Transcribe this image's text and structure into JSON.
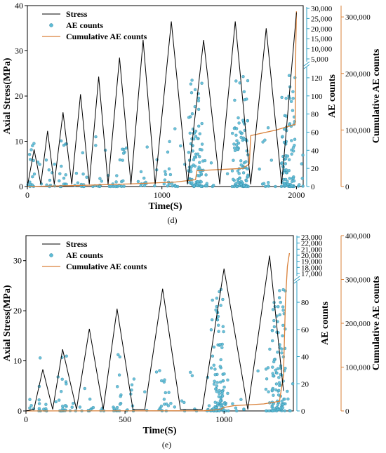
{
  "chart_data": [
    {
      "panel_label": "(d)",
      "type": "line",
      "xlabel": "Time(S)",
      "ylabel_left": "Axial Stress(MPa)",
      "ylabel_right1": "AE counts",
      "ylabel_right2": "Cumulative AE counts",
      "xlim": [
        0,
        2050
      ],
      "xticks": [
        "0",
        "1000",
        "2000"
      ],
      "ylim_left": [
        0,
        40
      ],
      "yticks_left": [
        "0",
        "10",
        "20",
        "30",
        "40"
      ],
      "ae_ticks_lower": [
        "0",
        "20",
        "40",
        "60",
        "80",
        "100",
        "120"
      ],
      "ae_ticks_upper": [
        "5,000",
        "10,000",
        "15,000",
        "20,000",
        "25,000",
        "30,000"
      ],
      "ae_break_at": 130,
      "ylim_cum": [
        0,
        320000
      ],
      "yticks_cum": [
        "0",
        "100,000",
        "200,000",
        "300,000"
      ],
      "legend": [
        "Stress",
        "AE counts",
        "Cumulative AE counts"
      ],
      "legend_position": "top-left",
      "colors": {
        "stress": "#000000",
        "ae": "#5bbcd6",
        "cum": "#d9813a",
        "axis_ae": "#2a9fc4",
        "axis_cum": "#d9813a"
      },
      "series": [
        {
          "name": "Stress",
          "x": [
            0,
            50,
            100,
            150,
            200,
            265,
            330,
            395,
            460,
            530,
            600,
            685,
            770,
            860,
            950,
            1070,
            1190,
            1310,
            1430,
            1545,
            1660,
            1775,
            1890,
            2000
          ],
          "y": [
            0,
            8.2,
            0.5,
            12.3,
            0.5,
            16.4,
            0.5,
            20.4,
            0.5,
            24.3,
            0.5,
            28.5,
            0.5,
            32.4,
            0.5,
            36.5,
            0.5,
            32.4,
            0.5,
            36.5,
            0.5,
            35,
            0.5,
            38.5
          ]
        },
        {
          "name": "Cumulative AE counts",
          "x": [
            0,
            400,
            800,
            1100,
            1250,
            1260,
            1600,
            1650,
            1660,
            1850,
            1990,
            1995,
            2000
          ],
          "y": [
            0,
            2000,
            5000,
            8000,
            12000,
            28000,
            32000,
            40000,
            90000,
            100000,
            110000,
            250000,
            310000
          ]
        }
      ]
    },
    {
      "panel_label": "(e)",
      "type": "line",
      "xlabel": "Time(S)",
      "ylabel_left": "Axial Stress(MPa)",
      "ylabel_right1": "AE counts",
      "ylabel_right2": "Cumulative AE counts",
      "xlim": [
        0,
        1350
      ],
      "xticks": [
        "0",
        "500",
        "1000"
      ],
      "ylim_left": [
        0,
        35
      ],
      "yticks_left": [
        "0",
        "10",
        "20",
        "30"
      ],
      "ae_ticks_lower": [
        "0",
        "20",
        "40",
        "60",
        "80"
      ],
      "ae_ticks_upper": [
        "17,000",
        "18,000",
        "19,000",
        "20,000",
        "21,000",
        "22,000",
        "23,000"
      ],
      "ae_break_at": 95,
      "ylim_cum": [
        0,
        400000
      ],
      "yticks_cum": [
        "0",
        "100,000",
        "200,000",
        "300,000",
        "400,000"
      ],
      "legend": [
        "Stress",
        "AE counts",
        "Cumulative AE counts"
      ],
      "legend_position": "top-left",
      "colors": {
        "stress": "#000000",
        "ae": "#5bbcd6",
        "cum": "#d9813a",
        "axis_ae": "#2a9fc4",
        "axis_cum": "#d9813a"
      },
      "series": [
        {
          "name": "Stress",
          "x": [
            0,
            40,
            85,
            135,
            185,
            255,
            320,
            390,
            460,
            540,
            600,
            690,
            780,
            890,
            1000,
            1120,
            1230,
            1300
          ],
          "y": [
            0,
            0.3,
            8.3,
            0.3,
            12.3,
            0.3,
            16.4,
            0.3,
            20.4,
            0.3,
            0.3,
            24.4,
            0.3,
            0.3,
            28.4,
            0.3,
            31,
            4
          ]
        },
        {
          "name": "Cumulative AE counts",
          "x": [
            0,
            900,
            980,
            1000,
            1050,
            1200,
            1280,
            1300,
            1310,
            1320,
            1330
          ],
          "y": [
            0,
            500,
            3000,
            8000,
            12000,
            16000,
            22000,
            80000,
            250000,
            330000,
            360000
          ]
        }
      ]
    }
  ]
}
